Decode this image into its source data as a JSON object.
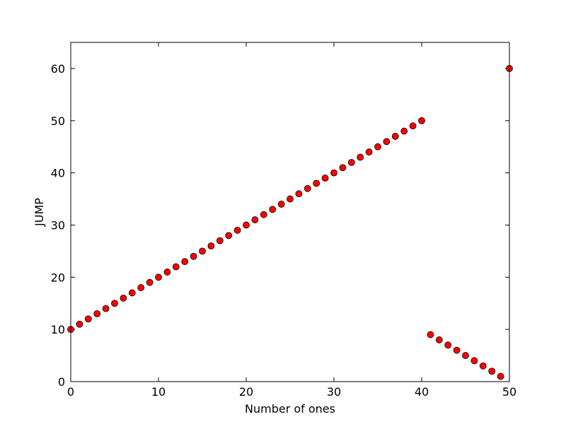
{
  "chart_data": {
    "type": "scatter",
    "xlabel": "Number of ones",
    "ylabel": "JUMP",
    "x": [
      0,
      1,
      2,
      3,
      4,
      5,
      6,
      7,
      8,
      9,
      10,
      11,
      12,
      13,
      14,
      15,
      16,
      17,
      18,
      19,
      20,
      21,
      22,
      23,
      24,
      25,
      26,
      27,
      28,
      29,
      30,
      31,
      32,
      33,
      34,
      35,
      36,
      37,
      38,
      39,
      40,
      41,
      42,
      43,
      44,
      45,
      46,
      47,
      48,
      49,
      50
    ],
    "values": [
      10,
      11,
      12,
      13,
      14,
      15,
      16,
      17,
      18,
      19,
      20,
      21,
      22,
      23,
      24,
      25,
      26,
      27,
      28,
      29,
      30,
      31,
      32,
      33,
      34,
      35,
      36,
      37,
      38,
      39,
      40,
      41,
      42,
      43,
      44,
      45,
      46,
      47,
      48,
      49,
      50,
      9,
      8,
      7,
      6,
      5,
      4,
      3,
      2,
      1,
      60
    ],
    "color": "#ff0000",
    "xlim": [
      0,
      50
    ],
    "ylim": [
      0,
      65
    ],
    "xticks": [
      0,
      10,
      20,
      30,
      40,
      50
    ],
    "yticks": [
      0,
      10,
      20,
      30,
      40,
      50,
      60
    ]
  }
}
